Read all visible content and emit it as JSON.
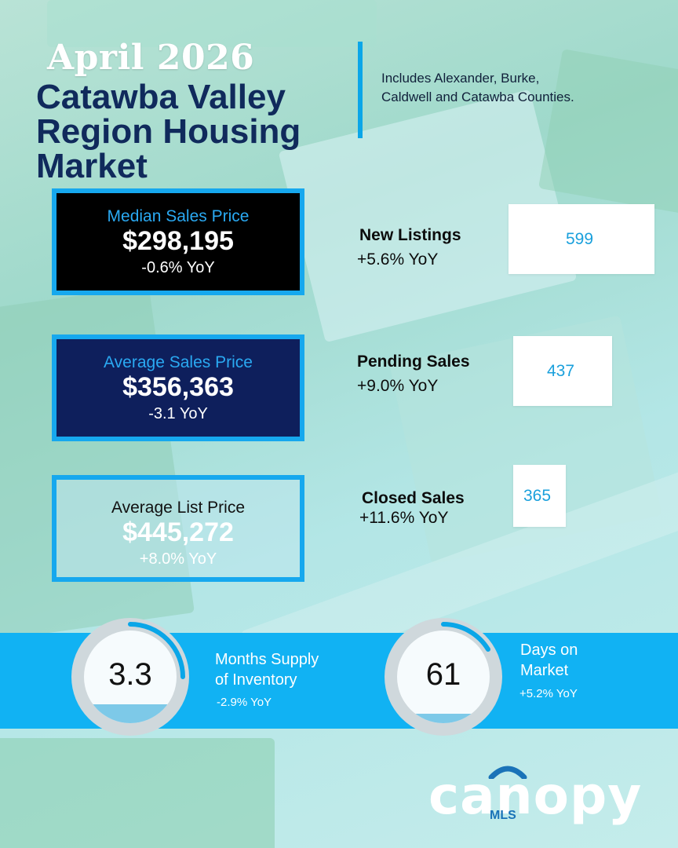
{
  "header": {
    "month": "April 2026",
    "title_lines": [
      "Catawba Valley",
      "Region Housing",
      "Market"
    ],
    "region_note_lines": [
      "Includes Alexander, Burke,",
      "Caldwell and Catawba Counties."
    ]
  },
  "price_boxes": [
    {
      "label": "Median Sales Price",
      "value": "$298,195",
      "change": "-0.6% YoY"
    },
    {
      "label": "Average Sales Price",
      "value": "$356,363",
      "change": "-3.1 YoY"
    },
    {
      "label": "Average List Price",
      "value": "$445,272",
      "change": "+8.0% YoY"
    }
  ],
  "metrics": [
    {
      "label": "New Listings",
      "change": "+5.6% YoY",
      "value": "599"
    },
    {
      "label": "Pending Sales",
      "change": "+9.0% YoY",
      "value": "437"
    },
    {
      "label": "Closed Sales",
      "change": "+11.6% YoY",
      "value": "365"
    }
  ],
  "gauges": [
    {
      "value": "3.3",
      "label_lines": [
        "Months Supply",
        "of Inventory"
      ],
      "change": "-2.9% YoY"
    },
    {
      "value": "61",
      "label_lines": [
        "Days on",
        "Market"
      ],
      "change": "+5.2% YoY"
    }
  ],
  "logo": {
    "word": "canopy",
    "sub": "MLS"
  },
  "colors": {
    "accent": "#16a8ee",
    "navy": "#102a5c",
    "band": "#11b2f3",
    "median_box": "#000000",
    "average_box": "#0e1f5c"
  }
}
